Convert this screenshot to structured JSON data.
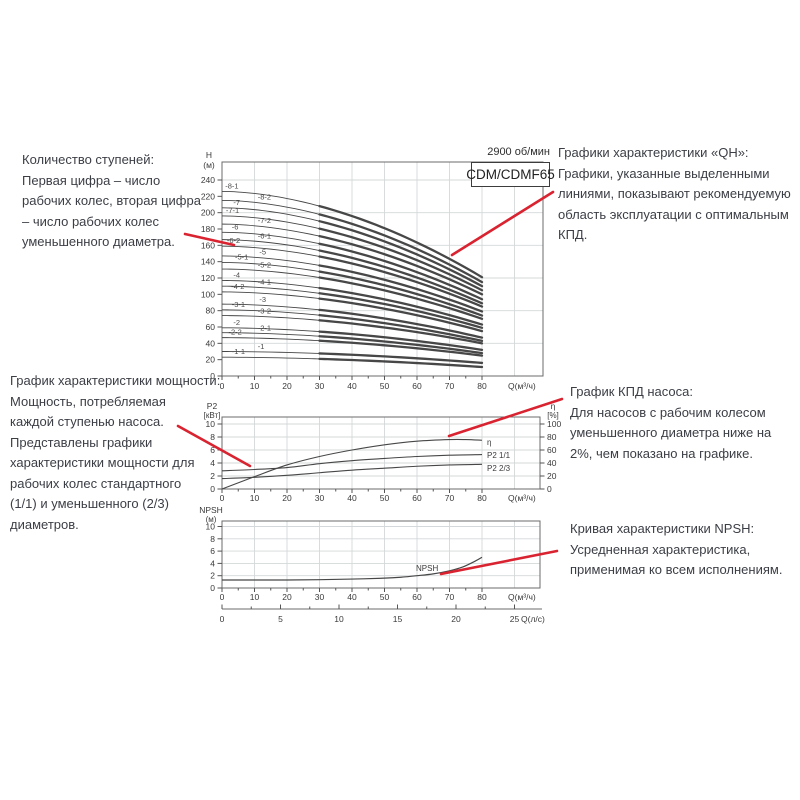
{
  "figure": {
    "rpm_label": "2900 об/мин",
    "model_label": "CDM/CDMF65"
  },
  "annotations": {
    "stages": {
      "title": "Количество ступеней:",
      "body": "Первая цифра – число рабочих колес, вторая цифра – число рабочих колес уменьшенного диаметра."
    },
    "qh": {
      "title": "Графики характеристики «QH»:",
      "body": "Графики, указанные выделенными линиями, показывают рекомендуемую область эксплуатации с оптимальным КПД."
    },
    "power": {
      "title": "График характеристики мощности:",
      "body": "Мощность, потребляемая каждой ступенью насоса. Представлены графики характеристики мощности для рабочих колес стандартного (1/1) и уменьшенного (2/3) диаметров."
    },
    "eff": {
      "title": "График КПД насоса:",
      "body": "Для насосов с рабочим колесом уменьшенного диаметра ниже на 2%, чем показано на графике."
    },
    "npsh": {
      "title": "Кривая характеристики NPSH:",
      "body": "Усредненная характеристика, применимая ко всем исполнениям."
    }
  },
  "chart_data": [
    {
      "id": "qh",
      "type": "line",
      "title": "CDM/CDMF65",
      "rpm": "2900 об/мин",
      "xlabel": "Q(м³/ч)",
      "ylabel_lines": [
        "H",
        "(м)"
      ],
      "x_ticks": [
        0,
        10,
        20,
        30,
        40,
        50,
        60,
        70,
        80
      ],
      "y_ticks": [
        0,
        20,
        40,
        60,
        80,
        100,
        120,
        140,
        160,
        180,
        200,
        220,
        240
      ],
      "xlim": [
        0,
        98
      ],
      "ylim": [
        0,
        262
      ],
      "grid_x_step": 10,
      "grid_y_step": 40,
      "bold_range_q": [
        30,
        80
      ],
      "curves": [
        {
          "label": "-8-1",
          "h0": 226,
          "h80": 121,
          "label_q": 1
        },
        {
          "label": "-8-2",
          "h0": 215,
          "h80": 115,
          "label_q": 11
        },
        {
          "label": "-7",
          "h0": 206,
          "h80": 110,
          "label_q": 3.5
        },
        {
          "label": "-7-1",
          "h0": 196,
          "h80": 105,
          "label_q": 1.2
        },
        {
          "label": "-7-2",
          "h0": 186,
          "h80": 100,
          "label_q": 11
        },
        {
          "label": "-6",
          "h0": 176,
          "h80": 94,
          "label_q": 3
        },
        {
          "label": "-6-1",
          "h0": 167,
          "h80": 89,
          "label_q": 11
        },
        {
          "label": "-6-2",
          "h0": 159,
          "h80": 85,
          "label_q": 1.5
        },
        {
          "label": "-5",
          "h0": 147,
          "h80": 79,
          "label_q": 11.5
        },
        {
          "label": "-5-1",
          "h0": 139,
          "h80": 74,
          "label_q": 4
        },
        {
          "label": "-5-2",
          "h0": 131,
          "h80": 70,
          "label_q": 11
        },
        {
          "label": "-4",
          "h0": 117,
          "h80": 63,
          "label_q": 3.5
        },
        {
          "label": "-4-1",
          "h0": 110,
          "h80": 59,
          "label_q": 11
        },
        {
          "label": "-4-2",
          "h0": 103,
          "h80": 55,
          "label_q": 2.8
        },
        {
          "label": "-3",
          "h0": 88,
          "h80": 47,
          "label_q": 11.5
        },
        {
          "label": "-3-1",
          "h0": 81,
          "h80": 43,
          "label_q": 3
        },
        {
          "label": "-3-2",
          "h0": 74,
          "h80": 40,
          "label_q": 11
        },
        {
          "label": "-2",
          "h0": 59,
          "h80": 32,
          "label_q": 3.5
        },
        {
          "label": "-2-1",
          "h0": 53,
          "h80": 28,
          "label_q": 11
        },
        {
          "label": "-2-2",
          "h0": 47,
          "h80": 25,
          "label_q": 2
        },
        {
          "label": "-1",
          "h0": 30,
          "h80": 16,
          "label_q": 11
        },
        {
          "label": "-1-1",
          "h0": 23,
          "h80": 11,
          "label_q": 3
        }
      ]
    },
    {
      "id": "power",
      "type": "line",
      "xlabel": "Q(м³/ч)",
      "ylabel_lines": [
        "P2",
        "[кВт]"
      ],
      "y2label_lines": [
        "η",
        "[%]"
      ],
      "x_ticks": [
        0,
        10,
        20,
        30,
        40,
        50,
        60,
        70,
        80
      ],
      "y_ticks": [
        0,
        2,
        4,
        6,
        8,
        10
      ],
      "y2_ticks": [
        0,
        20,
        40,
        60,
        80,
        100
      ],
      "series": [
        {
          "name": "η",
          "axis": "y2",
          "x": [
            0,
            10,
            20,
            30,
            40,
            50,
            60,
            70,
            75,
            80
          ],
          "y": [
            0,
            19,
            37,
            50,
            60,
            68,
            73.5,
            76,
            76,
            75
          ]
        },
        {
          "name": "P2 1/1",
          "axis": "y1",
          "x": [
            0,
            10,
            20,
            30,
            40,
            50,
            60,
            70,
            80
          ],
          "y": [
            2.8,
            3.0,
            3.3,
            3.9,
            4.35,
            4.7,
            5.0,
            5.2,
            5.3
          ]
        },
        {
          "name": "P2 2/3",
          "axis": "y1",
          "x": [
            0,
            10,
            20,
            30,
            40,
            50,
            60,
            70,
            80
          ],
          "y": [
            1.6,
            1.8,
            2.1,
            2.5,
            2.9,
            3.2,
            3.5,
            3.7,
            3.8
          ]
        }
      ]
    },
    {
      "id": "npsh",
      "type": "line",
      "xlabel": "Q(м³/ч)",
      "x2label": "Q(л/с)",
      "ylabel_lines": [
        "NPSH",
        "(м)"
      ],
      "x_ticks": [
        0,
        10,
        20,
        30,
        40,
        50,
        60,
        70,
        80
      ],
      "y_ticks": [
        0,
        2,
        4,
        6,
        8,
        10
      ],
      "x2_ticks": [
        0,
        5,
        10,
        15,
        20,
        25
      ],
      "x2_minor_step": 2.5,
      "series": [
        {
          "name": "NPSH",
          "x": [
            0,
            10,
            20,
            30,
            40,
            50,
            55,
            60,
            65,
            70,
            74,
            78,
            80
          ],
          "y": [
            1.3,
            1.3,
            1.3,
            1.35,
            1.45,
            1.6,
            1.75,
            2.0,
            2.3,
            2.8,
            3.4,
            4.4,
            5.0
          ]
        }
      ]
    }
  ]
}
